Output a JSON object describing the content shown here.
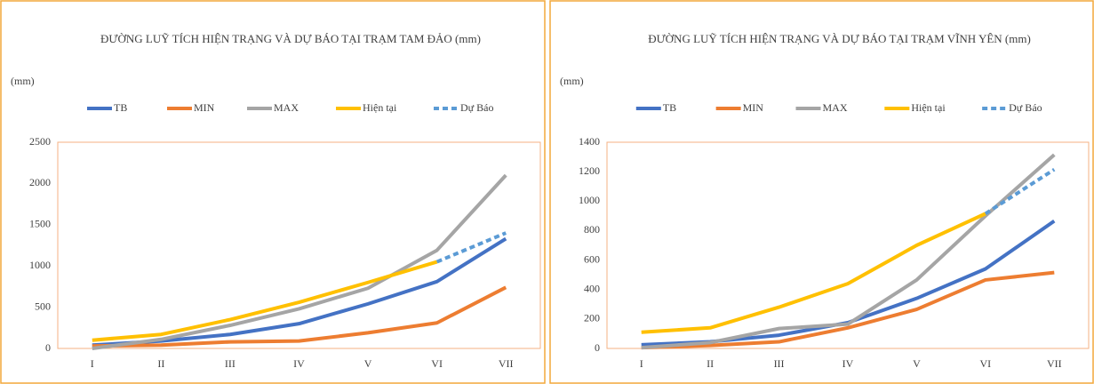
{
  "chart_data": [
    {
      "type": "line",
      "title": "ĐƯỜNG LUỸ TÍCH HIỆN TRẠNG VÀ DỰ BÁO TẠI TRẠM TAM ĐẢO (mm)",
      "y_label": "(mm)",
      "categories": [
        "I",
        "II",
        "III",
        "IV",
        "V",
        "VI",
        "VII"
      ],
      "ylim": [
        0,
        2500
      ],
      "yticks": [
        0,
        500,
        1000,
        1500,
        2000,
        2500
      ],
      "legend": "top",
      "series": [
        {
          "name": "TB",
          "color": "#4472c4",
          "values": [
            40,
            90,
            170,
            300,
            540,
            810,
            1330
          ]
        },
        {
          "name": "MIN",
          "color": "#ed7d31",
          "values": [
            30,
            40,
            80,
            90,
            190,
            310,
            740
          ]
        },
        {
          "name": "MAX",
          "color": "#a5a5a5",
          "values": [
            0,
            110,
            280,
            480,
            730,
            1190,
            2100
          ]
        },
        {
          "name": "Hiện tại",
          "color": "#ffc000",
          "values": [
            100,
            170,
            350,
            560,
            800,
            1050,
            null
          ]
        },
        {
          "name": "Dự Báo",
          "color": "#5b9bd5",
          "dashed": true,
          "values": [
            null,
            null,
            null,
            null,
            null,
            1050,
            1400
          ]
        }
      ]
    },
    {
      "type": "line",
      "title": "ĐƯỜNG LUỸ TÍCH HIỆN TRẠNG VÀ DỰ BÁO TẠI TRẠM VĨNH YÊN (mm)",
      "y_label": "(mm)",
      "categories": [
        "I",
        "II",
        "III",
        "IV",
        "V",
        "VI",
        "VII"
      ],
      "ylim": [
        0,
        1400
      ],
      "yticks": [
        0,
        200,
        400,
        600,
        800,
        1000,
        1200,
        1400
      ],
      "legend": "top",
      "series": [
        {
          "name": "TB",
          "color": "#4472c4",
          "values": [
            25,
            45,
            90,
            175,
            340,
            540,
            865
          ]
        },
        {
          "name": "MIN",
          "color": "#ed7d31",
          "values": [
            5,
            20,
            45,
            140,
            265,
            465,
            515
          ]
        },
        {
          "name": "MAX",
          "color": "#a5a5a5",
          "values": [
            5,
            40,
            135,
            165,
            465,
            900,
            1315
          ]
        },
        {
          "name": "Hiện tại",
          "color": "#ffc000",
          "values": [
            110,
            140,
            280,
            440,
            700,
            915,
            null
          ]
        },
        {
          "name": "Dự Báo",
          "color": "#5b9bd5",
          "dashed": true,
          "values": [
            null,
            null,
            null,
            null,
            null,
            915,
            1215
          ]
        }
      ]
    }
  ]
}
